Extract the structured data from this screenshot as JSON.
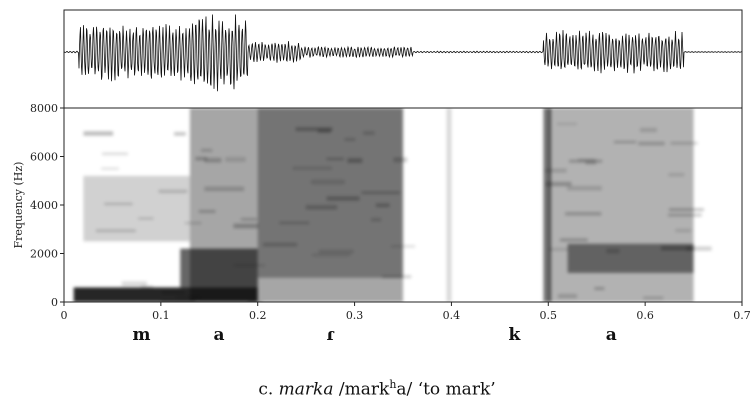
{
  "chart_data": {
    "type": "spectrogram",
    "waveform": {
      "description_segments": [
        {
          "from": 0.0,
          "to": 0.015,
          "amp": 0.02
        },
        {
          "from": 0.015,
          "to": 0.13,
          "amp": 0.75
        },
        {
          "from": 0.13,
          "to": 0.19,
          "amp": 1.0
        },
        {
          "from": 0.19,
          "to": 0.245,
          "amp": 0.28
        },
        {
          "from": 0.245,
          "to": 0.36,
          "amp": 0.14
        },
        {
          "from": 0.36,
          "to": 0.495,
          "amp": 0.02
        },
        {
          "from": 0.495,
          "to": 0.64,
          "amp": 0.55
        }
      ]
    },
    "spectrogram": {
      "ylabel": "Frequency (Hz)",
      "y_ticks": [
        "0",
        "2000",
        "4000",
        "6000",
        "8000"
      ],
      "ylim": [
        0,
        8000
      ],
      "x_ticks": [
        "0",
        "0.1",
        "0.2",
        "0.3",
        "0.4",
        "0.5",
        "0.6",
        "0.7"
      ],
      "xlim": [
        0,
        0.7
      ],
      "darkness_regions": [
        {
          "t0": 0.01,
          "t1": 0.2,
          "f0": 0,
          "f1": 600,
          "level": 0.85
        },
        {
          "t0": 0.12,
          "t1": 0.2,
          "f0": 600,
          "f1": 2200,
          "level": 0.6
        },
        {
          "t0": 0.13,
          "t1": 0.35,
          "f0": 0,
          "f1": 8000,
          "level": 0.35
        },
        {
          "t0": 0.2,
          "t1": 0.35,
          "f0": 1000,
          "f1": 8000,
          "level": 0.3
        },
        {
          "t0": 0.02,
          "t1": 0.13,
          "f0": 2500,
          "f1": 5200,
          "level": 0.18
        },
        {
          "t0": 0.5,
          "t1": 0.65,
          "f0": 0,
          "f1": 8000,
          "level": 0.3
        },
        {
          "t0": 0.52,
          "t1": 0.65,
          "f0": 1200,
          "f1": 2400,
          "level": 0.45
        },
        {
          "t0": 0.395,
          "t1": 0.4,
          "f0": 0,
          "f1": 8000,
          "level": 0.15
        },
        {
          "t0": 0.495,
          "t1": 0.503,
          "f0": 0,
          "f1": 8000,
          "level": 0.55
        }
      ]
    }
  },
  "segments": [
    {
      "label": "m",
      "t": 0.08
    },
    {
      "label": "a",
      "t": 0.16
    },
    {
      "label": "ɾ",
      "t": 0.275
    },
    {
      "label": "k",
      "t": 0.465
    },
    {
      "label": "a",
      "t": 0.565
    }
  ],
  "caption": {
    "prefix": "c. ",
    "word": "marka",
    "ipa_before": " /mark",
    "ipa_sup": "h",
    "ipa_after": "a/ ‘to mark’"
  }
}
